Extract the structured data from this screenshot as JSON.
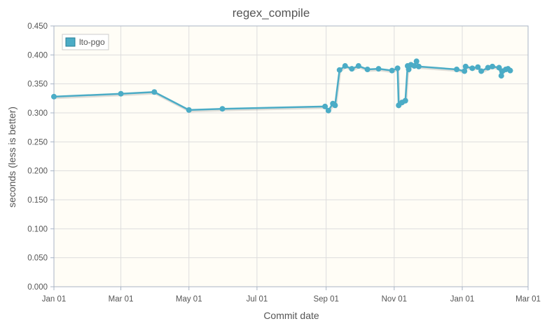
{
  "chart_data": {
    "type": "line",
    "title": "regex_compile",
    "xlabel": "Commit date",
    "ylabel": "seconds (less is better)",
    "x_ticks": [
      "Jan 01",
      "Mar 01",
      "May 01",
      "Jul 01",
      "Sep 01",
      "Nov 01",
      "Jan 01",
      "Mar 01"
    ],
    "xlim": [
      "2020-01-01",
      "2021-03-01"
    ],
    "ylim": [
      0,
      0.45
    ],
    "y_ticks": [
      "0.000",
      "0.050",
      "0.100",
      "0.150",
      "0.200",
      "0.250",
      "0.300",
      "0.350",
      "0.400",
      "0.450"
    ],
    "grid": true,
    "legend_position": "top-left",
    "colors": {
      "series": "#4bacc6",
      "plot_background": "#fffdf6",
      "grid": "#dddddd",
      "axis": "#a8b4c4"
    },
    "series": [
      {
        "name": "lto-pgo",
        "points": [
          [
            "2020-01-01",
            0.328
          ],
          [
            "2020-03-01",
            0.333
          ],
          [
            "2020-03-31",
            0.336
          ],
          [
            "2020-05-01",
            0.305
          ],
          [
            "2020-05-31",
            0.307
          ],
          [
            "2020-08-31",
            0.311
          ],
          [
            "2020-09-03",
            0.304
          ],
          [
            "2020-09-07",
            0.316
          ],
          [
            "2020-09-09",
            0.313
          ],
          [
            "2020-09-13",
            0.374
          ],
          [
            "2020-09-18",
            0.381
          ],
          [
            "2020-09-24",
            0.376
          ],
          [
            "2020-09-30",
            0.381
          ],
          [
            "2020-10-08",
            0.375
          ],
          [
            "2020-10-18",
            0.376
          ],
          [
            "2020-10-30",
            0.373
          ],
          [
            "2020-11-04",
            0.377
          ],
          [
            "2020-11-05",
            0.313
          ],
          [
            "2020-11-08",
            0.318
          ],
          [
            "2020-11-11",
            0.321
          ],
          [
            "2020-11-13",
            0.381
          ],
          [
            "2020-11-14",
            0.375
          ],
          [
            "2020-11-16",
            0.383
          ],
          [
            "2020-11-19",
            0.381
          ],
          [
            "2020-11-21",
            0.389
          ],
          [
            "2020-11-23",
            0.38
          ],
          [
            "2020-12-27",
            0.375
          ],
          [
            "2021-01-03",
            0.372
          ],
          [
            "2021-01-04",
            0.38
          ],
          [
            "2021-01-10",
            0.377
          ],
          [
            "2021-01-15",
            0.379
          ],
          [
            "2021-01-18",
            0.372
          ],
          [
            "2021-01-24",
            0.378
          ],
          [
            "2021-01-28",
            0.38
          ],
          [
            "2021-02-03",
            0.378
          ],
          [
            "2021-02-05",
            0.364
          ],
          [
            "2021-02-06",
            0.372
          ],
          [
            "2021-02-09",
            0.375
          ],
          [
            "2021-02-11",
            0.376
          ],
          [
            "2021-02-13",
            0.373
          ]
        ]
      }
    ]
  }
}
